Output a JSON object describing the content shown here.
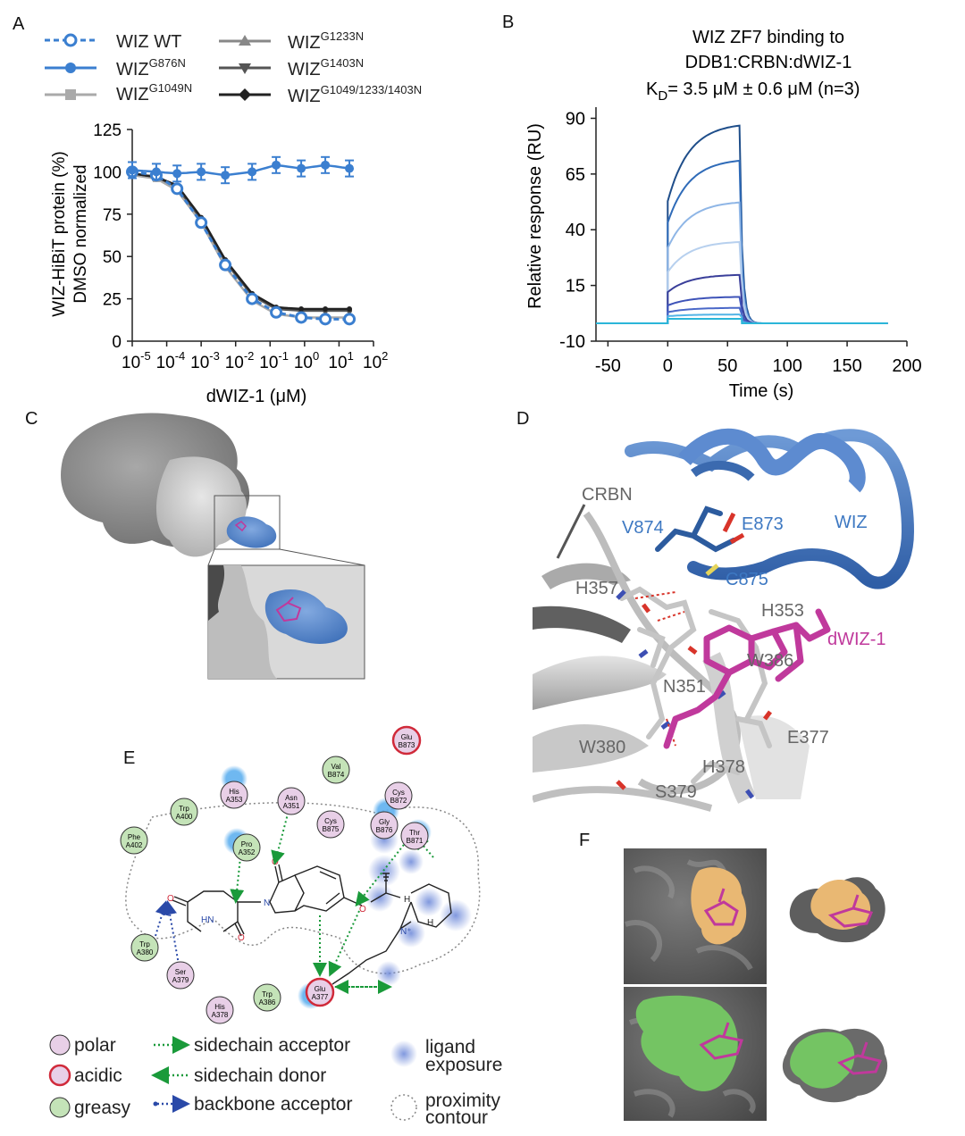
{
  "panels": {
    "a": "A",
    "b": "B",
    "c": "C",
    "d": "D",
    "e": "E",
    "f": "F"
  },
  "colors": {
    "wt_blue": "#3b7fd0",
    "gray_light": "#aaaaaa",
    "gray_mid": "#888888",
    "gray_dark": "#555555",
    "black": "#222222",
    "magenta": "#c0399c",
    "wiz_blue": "#4a7fc0",
    "orange_surface": "#e9b873",
    "green_surface": "#74c463"
  },
  "chartA": {
    "legend": [
      {
        "base": "WIZ WT",
        "sup": ""
      },
      {
        "base": "WIZ",
        "sup": "G876N"
      },
      {
        "base": "WIZ",
        "sup": "G1049N"
      },
      {
        "base": "WIZ",
        "sup": "G1233N"
      },
      {
        "base": "WIZ",
        "sup": "G1403N"
      },
      {
        "base": "WIZ",
        "sup": "G1049/1233/1403N"
      }
    ],
    "ylabel_line1": "WIZ-HiBiT protein (%)",
    "ylabel_line2": "DMSO normalized",
    "xlabel": "dWIZ-1 (μM)",
    "yticks": [
      "0",
      "25",
      "50",
      "75",
      "100",
      "125"
    ],
    "xticks": [
      {
        "base": "10",
        "sup": "-5"
      },
      {
        "base": "10",
        "sup": "-4"
      },
      {
        "base": "10",
        "sup": "-3"
      },
      {
        "base": "10",
        "sup": "-2"
      },
      {
        "base": "10",
        "sup": "-1"
      },
      {
        "base": "10",
        "sup": "0"
      },
      {
        "base": "10",
        "sup": "1"
      },
      {
        "base": "10",
        "sup": "2"
      }
    ]
  },
  "chartB": {
    "title_line1": "WIZ ZF7 binding to",
    "title_line2": "DDB1:CRBN:dWIZ-1",
    "title_line3_k": "K",
    "title_line3_sub": "D",
    "title_line3_rest": "= 3.5 μM ± 0.6 μM (n=3)",
    "ylabel": "Relative response (RU)",
    "xlabel": "Time (s)",
    "yticks": [
      "-10",
      "15",
      "40",
      "65",
      "90"
    ],
    "xticks": [
      "-50",
      "0",
      "50",
      "100",
      "150",
      "200"
    ]
  },
  "chart_data": [
    {
      "type": "scatter",
      "xscale": "log",
      "xlabel": "dWIZ-1 (μM)",
      "ylabel": "WIZ-HiBiT protein (%) DMSO normalized",
      "xlim": [
        1e-05,
        100
      ],
      "ylim": [
        0,
        125
      ],
      "x": [
        1e-05,
        5e-05,
        0.0002,
        0.001,
        0.005,
        0.03,
        0.15,
        0.8,
        4,
        20
      ],
      "series": [
        {
          "name": "WIZ WT",
          "values": [
            100,
            98,
            90,
            70,
            45,
            25,
            17,
            14,
            13,
            13
          ]
        },
        {
          "name": "WIZ G876N",
          "values": [
            101,
            100,
            99,
            100,
            98,
            100,
            104,
            102,
            104,
            102
          ]
        },
        {
          "name": "WIZ G1049N",
          "values": [
            98,
            96,
            89,
            70,
            44,
            24,
            16,
            14,
            14,
            14
          ]
        },
        {
          "name": "WIZ G1233N",
          "values": [
            99,
            97,
            91,
            72,
            48,
            28,
            20,
            18,
            18,
            18
          ]
        },
        {
          "name": "WIZ G1403N",
          "values": [
            99,
            97,
            91,
            72,
            47,
            27,
            19,
            18,
            18,
            18
          ]
        },
        {
          "name": "WIZ G1049/1233/1403N",
          "values": [
            99,
            97,
            92,
            73,
            48,
            28,
            20,
            19,
            19,
            19
          ]
        }
      ]
    },
    {
      "type": "line",
      "xlabel": "Time (s)",
      "ylabel": "Relative response (RU)",
      "xlim": [
        -60,
        200
      ],
      "ylim": [
        -10,
        95
      ],
      "series": [
        {
          "values": [
            88
          ]
        },
        {
          "values": [
            72
          ]
        },
        {
          "values": [
            53
          ]
        },
        {
          "values": [
            35
          ]
        },
        {
          "values": [
            20
          ]
        },
        {
          "values": [
            10
          ]
        },
        {
          "values": [
            5
          ]
        },
        {
          "values": [
            2
          ]
        },
        {
          "values": [
            0
          ]
        }
      ]
    }
  ],
  "panelD": {
    "labels": [
      {
        "text": "CRBN",
        "color": "gray"
      },
      {
        "text": "V874",
        "color": "blue"
      },
      {
        "text": "E873",
        "color": "blue"
      },
      {
        "text": "WIZ",
        "color": "blue"
      },
      {
        "text": "C875",
        "color": "blue"
      },
      {
        "text": "H357",
        "color": "gray"
      },
      {
        "text": "H353",
        "color": "gray"
      },
      {
        "text": "dWIZ-1",
        "color": "magenta"
      },
      {
        "text": "W386",
        "color": "gray"
      },
      {
        "text": "N351",
        "color": "gray"
      },
      {
        "text": "W380",
        "color": "gray"
      },
      {
        "text": "E377",
        "color": "gray"
      },
      {
        "text": "H378",
        "color": "gray"
      },
      {
        "text": "S379",
        "color": "gray"
      }
    ]
  },
  "panelE": {
    "residues": [
      {
        "l1": "Glu",
        "l2": "B873",
        "type": "acidic"
      },
      {
        "l1": "Val",
        "l2": "B874",
        "type": "greasy"
      },
      {
        "l1": "His",
        "l2": "A353",
        "type": "polar"
      },
      {
        "l1": "Asn",
        "l2": "A351",
        "type": "polar"
      },
      {
        "l1": "Cys",
        "l2": "B872",
        "type": "polar"
      },
      {
        "l1": "Trp",
        "l2": "A400",
        "type": "greasy"
      },
      {
        "l1": "Cys",
        "l2": "B875",
        "type": "polar"
      },
      {
        "l1": "Gly",
        "l2": "B876",
        "type": "polar"
      },
      {
        "l1": "Thr",
        "l2": "B871",
        "type": "polar"
      },
      {
        "l1": "Phe",
        "l2": "A402",
        "type": "greasy"
      },
      {
        "l1": "Pro",
        "l2": "A352",
        "type": "greasy"
      },
      {
        "l1": "Trp",
        "l2": "A380",
        "type": "greasy"
      },
      {
        "l1": "Ser",
        "l2": "A379",
        "type": "polar"
      },
      {
        "l1": "Glu",
        "l2": "A377",
        "type": "acidic"
      },
      {
        "l1": "His",
        "l2": "A378",
        "type": "polar"
      },
      {
        "l1": "Trp",
        "l2": "A386",
        "type": "greasy"
      }
    ],
    "atoms": {
      "o": "O",
      "n": "N",
      "hn": "HN",
      "nh": "N⁺",
      "h": "H"
    },
    "legend": {
      "polar": "polar",
      "acidic": "acidic",
      "greasy": "greasy",
      "sc_acceptor": "sidechain acceptor",
      "sc_donor": "sidechain donor",
      "bb_acceptor": "backbone acceptor",
      "exposure_l1": "ligand",
      "exposure_l2": "exposure",
      "contour_l1": "proximity",
      "contour_l2": "contour"
    }
  }
}
